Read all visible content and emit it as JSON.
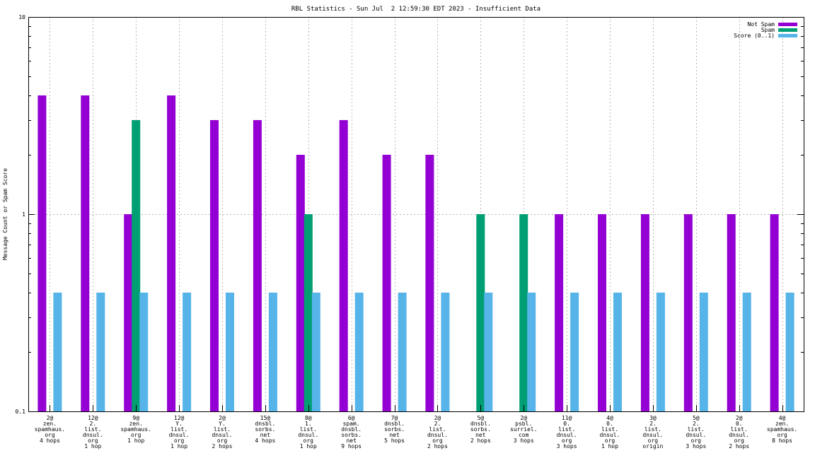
{
  "chart_data": {
    "type": "bar",
    "title": "RBL Statistics - Sun Jul  2 12:59:30 EDT 2023 - Insufficient Data",
    "ylabel": "Message Count or Spam Score",
    "xlabel": "",
    "yscale": "log",
    "ylim": [
      0.1,
      10
    ],
    "y_ticks": [
      {
        "value": 0.1,
        "label": "0.1"
      },
      {
        "value": 1,
        "label": "1"
      },
      {
        "value": 10,
        "label": "10"
      }
    ],
    "grid": true,
    "legend_position": "top-right",
    "categories": [
      [
        "2@",
        "zen.",
        "spamhaus.",
        "org",
        "4 hops"
      ],
      [
        "12@",
        "2.",
        "list.",
        "dnsul.",
        "org",
        "1 hop"
      ],
      [
        "9@",
        "zen.",
        "spamhaus.",
        "org",
        "1 hop"
      ],
      [
        "12@",
        "Y.",
        "list.",
        "dnsul.",
        "org",
        "1 hop"
      ],
      [
        "2@",
        "Y.",
        "list.",
        "dnsul.",
        "org",
        "2 hops"
      ],
      [
        "15@",
        "dnsbl.",
        "sorbs.",
        "net",
        "4 hops"
      ],
      [
        "8@",
        "1.",
        "list.",
        "dnsul.",
        "org",
        "1 hop"
      ],
      [
        "6@",
        "spam.",
        "dnsbl.",
        "sorbs.",
        "net",
        "9 hops"
      ],
      [
        "7@",
        "dnsbl.",
        "sorbs.",
        "net",
        "5 hops"
      ],
      [
        "2@",
        "2.",
        "list.",
        "dnsul.",
        "org",
        "2 hops"
      ],
      [
        "5@",
        "dnsbl.",
        "sorbs.",
        "net",
        "2 hops"
      ],
      [
        "2@",
        "psbl.",
        "surriel.",
        "com",
        "3 hops"
      ],
      [
        "11@",
        "0.",
        "list.",
        "dnsul.",
        "org",
        "3 hops"
      ],
      [
        "4@",
        "0.",
        "list.",
        "dnsul.",
        "org",
        "1 hop"
      ],
      [
        "3@",
        "2.",
        "list.",
        "dnsul.",
        "org",
        "origin"
      ],
      [
        "5@",
        "2.",
        "list.",
        "dnsul.",
        "org",
        "3 hops"
      ],
      [
        "2@",
        "0.",
        "list.",
        "dnsul.",
        "org",
        "2 hops"
      ],
      [
        "4@",
        "zen.",
        "spamhaus.",
        "org",
        "8 hops"
      ]
    ],
    "series": [
      {
        "name": "Not Spam",
        "color": "#9400d3",
        "values": [
          4,
          4,
          1,
          4,
          3,
          3,
          2,
          3,
          2,
          2,
          0,
          0,
          1,
          1,
          1,
          1,
          1,
          1
        ]
      },
      {
        "name": "Spam",
        "color": "#009e73",
        "values": [
          0,
          0,
          3,
          0,
          0,
          0,
          1,
          0,
          0,
          0,
          1,
          1,
          0,
          0,
          0,
          0,
          0,
          0
        ]
      },
      {
        "name": "Score (0..1)",
        "color": "#56b4e9",
        "values": [
          0.4,
          0.4,
          0.4,
          0.4,
          0.4,
          0.4,
          0.4,
          0.4,
          0.4,
          0.4,
          0.4,
          0.4,
          0.4,
          0.4,
          0.4,
          0.4,
          0.4,
          0.4
        ]
      }
    ]
  }
}
